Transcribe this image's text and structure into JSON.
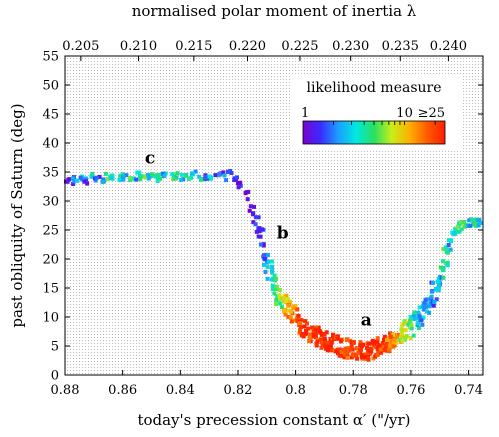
{
  "chart_data": {
    "type": "scatter",
    "title": "",
    "xlabel": "today's precession constant α′ (\"/yr)",
    "ylabel": "past obliquity of Saturn (deg)",
    "x2label": "normalised polar moment of inertia λ",
    "xlim": [
      0.88,
      0.735
    ],
    "ylim": [
      0,
      55
    ],
    "x_ticks": [
      "0.88",
      "0.86",
      "0.84",
      "0.82",
      "0.8",
      "0.78",
      "0.76",
      "0.74"
    ],
    "x_tick_values": [
      0.88,
      0.86,
      0.84,
      0.82,
      0.8,
      0.78,
      0.76,
      0.74
    ],
    "y_ticks": [
      "0",
      "5",
      "10",
      "15",
      "20",
      "25",
      "30",
      "35",
      "40",
      "45",
      "50",
      "55"
    ],
    "y_tick_values": [
      0,
      5,
      10,
      15,
      20,
      25,
      30,
      35,
      40,
      45,
      50,
      55
    ],
    "x2_ticks": [
      "0.205",
      "0.210",
      "0.215",
      "0.220",
      "0.225",
      "0.230",
      "0.235",
      "0.240"
    ],
    "x2_tick_alpha": [
      0.8745,
      0.8545,
      0.8353,
      0.8167,
      0.7985,
      0.7809,
      0.7637,
      0.747
    ],
    "grid": true,
    "legend": {
      "title": "likelihood measure",
      "placement": "top-right",
      "scale": "log",
      "range": [
        1,
        25
      ],
      "tick_labels": [
        "1",
        "10",
        "≥25"
      ],
      "tick_values": [
        1,
        10,
        25
      ],
      "colors": [
        "#7a00d0",
        "#3a2cff",
        "#1aa0ff",
        "#00e8e0",
        "#28e060",
        "#c8ee18",
        "#ffb000",
        "#ff5a00",
        "#ff1e00"
      ]
    },
    "annotations": [
      {
        "text": "a",
        "x": 0.7755,
        "y": 8.5
      },
      {
        "text": "b",
        "x": 0.8045,
        "y": 23.5
      },
      {
        "text": "c",
        "x": 0.8505,
        "y": 36.5
      }
    ],
    "series": [
      {
        "x": [
          0.879,
          0.877,
          0.875,
          0.873,
          0.871,
          0.869,
          0.867,
          0.865,
          0.863,
          0.861,
          0.859,
          0.857,
          0.855,
          0.853,
          0.851,
          0.849,
          0.847,
          0.845,
          0.843,
          0.841,
          0.839,
          0.837,
          0.835,
          0.833,
          0.831,
          0.829,
          0.827,
          0.825,
          0.823,
          0.821,
          0.819,
          0.817,
          0.815,
          0.813,
          0.812,
          0.811,
          0.81,
          0.809,
          0.808,
          0.807,
          0.806,
          0.805,
          0.804,
          0.803,
          0.802,
          0.801,
          0.8,
          0.799,
          0.798,
          0.797,
          0.796,
          0.795,
          0.794,
          0.793,
          0.792,
          0.791,
          0.79,
          0.789,
          0.788,
          0.787,
          0.786,
          0.785,
          0.784,
          0.783,
          0.782,
          0.781,
          0.78,
          0.779,
          0.778,
          0.777,
          0.776,
          0.775,
          0.774,
          0.773,
          0.772,
          0.771,
          0.77,
          0.769,
          0.768,
          0.767,
          0.766,
          0.765,
          0.764,
          0.763,
          0.762,
          0.761,
          0.76,
          0.759,
          0.758,
          0.757,
          0.756,
          0.755,
          0.754,
          0.753,
          0.752,
          0.751,
          0.75,
          0.749,
          0.748,
          0.747,
          0.746,
          0.745,
          0.744,
          0.743,
          0.742,
          0.741,
          0.74,
          0.739,
          0.738,
          0.737,
          0.736
        ],
        "y": [
          33.8,
          33.5,
          33.9,
          33.6,
          34.0,
          33.7,
          33.9,
          34.1,
          33.8,
          34.2,
          33.9,
          34.0,
          34.3,
          34.1,
          33.9,
          34.2,
          34.0,
          34.4,
          34.1,
          34.3,
          34.0,
          34.2,
          34.5,
          34.1,
          34.4,
          34.2,
          34.6,
          34.3,
          34.5,
          34.2,
          33.0,
          31.0,
          28.0,
          26.0,
          24.0,
          21.5,
          19.5,
          18.0,
          16.5,
          15.0,
          13.8,
          13.0,
          12.2,
          11.5,
          10.8,
          10.2,
          9.6,
          9.1,
          8.6,
          8.1,
          7.7,
          7.3,
          6.9,
          6.6,
          6.3,
          6.0,
          5.8,
          5.6,
          5.4,
          5.2,
          5.0,
          4.9,
          4.7,
          4.6,
          4.5,
          4.4,
          4.3,
          4.2,
          4.2,
          4.1,
          4.1,
          4.2,
          4.3,
          4.4,
          4.6,
          4.8,
          5.0,
          5.2,
          5.5,
          5.8,
          6.1,
          6.4,
          6.8,
          7.2,
          7.6,
          8.0,
          8.5,
          9.0,
          9.6,
          10.2,
          10.9,
          11.6,
          12.4,
          13.3,
          14.3,
          15.5,
          16.8,
          18.3,
          20.0,
          21.6,
          23.0,
          24.2,
          25.0,
          25.6,
          26.0,
          26.2,
          26.3,
          26.3,
          26.2,
          26.2,
          26.1
        ],
        "likelihood": [
          1.5,
          2,
          3,
          2,
          4,
          2,
          3,
          5,
          3,
          4,
          2,
          5,
          3,
          6,
          3,
          4,
          5,
          3,
          6,
          4,
          3,
          5,
          3,
          4,
          2,
          3,
          2,
          2,
          1.5,
          1.5,
          1.5,
          1.3,
          1.3,
          1.5,
          2,
          2,
          2.5,
          3,
          4,
          5,
          6,
          8,
          10,
          12,
          14,
          16,
          18,
          20,
          22,
          22,
          24,
          25,
          25,
          25,
          25,
          25,
          25,
          25,
          25,
          25,
          25,
          25,
          25,
          25,
          25,
          25,
          25,
          25,
          25,
          25,
          25,
          25,
          25,
          25,
          25,
          25,
          24,
          22,
          20,
          18,
          16,
          14,
          12,
          10,
          8,
          7,
          6,
          5,
          4,
          3.5,
          3,
          2.5,
          2,
          2,
          2,
          2.5,
          3,
          4,
          5,
          4,
          3,
          3,
          4,
          5,
          6,
          5,
          4,
          3,
          4,
          5,
          4
        ]
      }
    ]
  }
}
